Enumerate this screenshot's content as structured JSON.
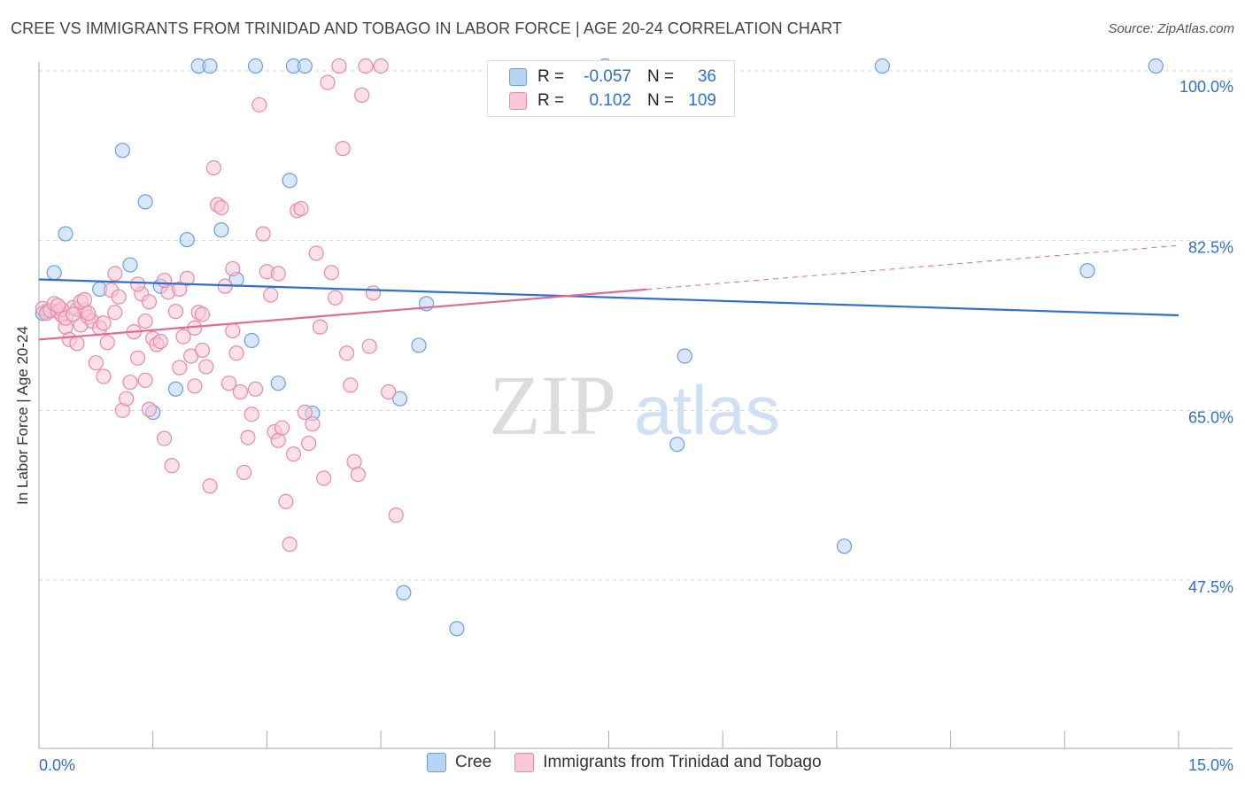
{
  "chart_data": {
    "type": "scatter",
    "title": "CREE VS IMMIGRANTS FROM TRINIDAD AND TOBAGO IN LABOR FORCE | AGE 20-24 CORRELATION CHART",
    "source": "Source: ZipAtlas.com",
    "xlabel": "",
    "ylabel": "In Labor Force | Age 20-24",
    "xlim": [
      0,
      15
    ],
    "ylim": [
      32,
      102
    ],
    "x_tick_labels": [
      "0.0%",
      "15.0%"
    ],
    "y_ticks": [
      100,
      82.5,
      65,
      47.5
    ],
    "y_tick_labels": [
      "100.0%",
      "82.5%",
      "65.0%",
      "47.5%"
    ],
    "watermark": {
      "zip": "ZIP",
      "atlas": "atlas"
    },
    "legend": {
      "r_label": "R =",
      "n_label": "N =",
      "entries": [
        {
          "name": "Cree",
          "r": "-0.057",
          "n": "36",
          "fill": "#b8d4f4",
          "stroke": "#6a9ee0"
        },
        {
          "name": "Immigrants from Trinidad and Tobago",
          "r": "0.102",
          "n": "109",
          "fill": "#f9c7d6",
          "stroke": "#e889a8"
        }
      ]
    },
    "series": [
      {
        "name": "Cree",
        "color": "#6a9ee0",
        "fill": "#b8d4f4",
        "trend": {
          "x": [
            0,
            15
          ],
          "y": [
            78.5,
            74.8
          ],
          "color": "#2f6fd0",
          "dashed_from": null
        },
        "points": [
          [
            0.1,
            75.2
          ],
          [
            0.2,
            79.2
          ],
          [
            0.35,
            83.2
          ],
          [
            0.5,
            75.4
          ],
          [
            0.8,
            77.5
          ],
          [
            1.1,
            91.8
          ],
          [
            1.2,
            80.0
          ],
          [
            1.4,
            86.5
          ],
          [
            1.5,
            64.8
          ],
          [
            1.6,
            77.8
          ],
          [
            1.8,
            67.2
          ],
          [
            1.95,
            82.6
          ],
          [
            2.1,
            100.5
          ],
          [
            2.25,
            100.5
          ],
          [
            2.4,
            83.6
          ],
          [
            2.6,
            78.5
          ],
          [
            2.85,
            100.5
          ],
          [
            2.8,
            72.2
          ],
          [
            3.15,
            67.8
          ],
          [
            3.3,
            88.7
          ],
          [
            3.35,
            100.5
          ],
          [
            3.5,
            100.5
          ],
          [
            3.6,
            64.7
          ],
          [
            4.75,
            66.2
          ],
          [
            4.8,
            46.2
          ],
          [
            5.0,
            71.7
          ],
          [
            5.1,
            76.0
          ],
          [
            5.5,
            42.5
          ],
          [
            7.45,
            100.5
          ],
          [
            8.4,
            61.5
          ],
          [
            8.5,
            70.6
          ],
          [
            10.6,
            51.0
          ],
          [
            11.1,
            100.5
          ],
          [
            13.8,
            79.4
          ],
          [
            14.7,
            100.5
          ],
          [
            0.05,
            75.0
          ]
        ]
      },
      {
        "name": "Immigrants from Trinidad and Tobago",
        "color": "#e889a8",
        "fill": "#f9c7d6",
        "trend": {
          "x": [
            0,
            15
          ],
          "y": [
            72.3,
            82.0
          ],
          "color": "#e06a92",
          "dashed_from": 8.0
        },
        "points": [
          [
            0.05,
            75.5
          ],
          [
            0.1,
            75.0
          ],
          [
            0.15,
            75.3
          ],
          [
            0.2,
            76.0
          ],
          [
            0.25,
            75.2
          ],
          [
            0.3,
            74.8
          ],
          [
            0.35,
            73.6
          ],
          [
            0.4,
            72.3
          ],
          [
            0.45,
            75.6
          ],
          [
            0.5,
            71.9
          ],
          [
            0.55,
            73.8
          ],
          [
            0.6,
            75.3
          ],
          [
            0.65,
            74.6
          ],
          [
            0.7,
            74.2
          ],
          [
            0.75,
            69.9
          ],
          [
            0.8,
            73.5
          ],
          [
            0.85,
            68.5
          ],
          [
            0.9,
            72.0
          ],
          [
            0.95,
            77.4
          ],
          [
            1.0,
            79.1
          ],
          [
            1.05,
            76.7
          ],
          [
            1.1,
            65.0
          ],
          [
            1.15,
            66.2
          ],
          [
            1.2,
            67.9
          ],
          [
            1.25,
            73.1
          ],
          [
            1.3,
            70.4
          ],
          [
            1.35,
            77.0
          ],
          [
            1.4,
            74.2
          ],
          [
            1.45,
            76.2
          ],
          [
            1.5,
            72.4
          ],
          [
            1.55,
            71.8
          ],
          [
            1.6,
            72.1
          ],
          [
            1.65,
            62.1
          ],
          [
            1.7,
            77.2
          ],
          [
            1.75,
            59.3
          ],
          [
            1.8,
            75.2
          ],
          [
            1.85,
            77.5
          ],
          [
            1.9,
            72.6
          ],
          [
            1.95,
            78.6
          ],
          [
            2.0,
            70.6
          ],
          [
            2.05,
            73.5
          ],
          [
            2.1,
            75.1
          ],
          [
            2.15,
            71.2
          ],
          [
            2.2,
            69.5
          ],
          [
            2.25,
            57.2
          ],
          [
            2.3,
            90.0
          ],
          [
            2.35,
            86.2
          ],
          [
            2.4,
            85.9
          ],
          [
            2.45,
            77.8
          ],
          [
            2.5,
            67.8
          ],
          [
            2.55,
            79.6
          ],
          [
            2.6,
            70.9
          ],
          [
            2.65,
            66.9
          ],
          [
            2.7,
            58.6
          ],
          [
            2.75,
            62.2
          ],
          [
            2.8,
            64.6
          ],
          [
            2.85,
            67.2
          ],
          [
            2.9,
            96.5
          ],
          [
            2.95,
            83.2
          ],
          [
            3.0,
            79.3
          ],
          [
            3.05,
            76.9
          ],
          [
            3.1,
            62.8
          ],
          [
            3.15,
            61.9
          ],
          [
            3.2,
            63.2
          ],
          [
            3.25,
            55.6
          ],
          [
            3.3,
            51.2
          ],
          [
            3.35,
            60.5
          ],
          [
            3.4,
            85.6
          ],
          [
            3.45,
            85.8
          ],
          [
            3.5,
            64.8
          ],
          [
            3.55,
            61.6
          ],
          [
            3.6,
            63.6
          ],
          [
            3.65,
            81.2
          ],
          [
            3.7,
            73.6
          ],
          [
            3.75,
            58.0
          ],
          [
            3.8,
            98.8
          ],
          [
            3.85,
            79.2
          ],
          [
            3.9,
            76.6
          ],
          [
            3.95,
            100.5
          ],
          [
            4.0,
            92.0
          ],
          [
            4.05,
            70.9
          ],
          [
            4.1,
            67.6
          ],
          [
            4.15,
            59.7
          ],
          [
            4.2,
            58.4
          ],
          [
            4.25,
            97.5
          ],
          [
            4.3,
            100.5
          ],
          [
            4.35,
            71.6
          ],
          [
            4.4,
            77.1
          ],
          [
            4.5,
            100.5
          ],
          [
            4.6,
            66.9
          ],
          [
            4.7,
            54.2
          ],
          [
            2.15,
            74.9
          ],
          [
            1.65,
            78.4
          ],
          [
            0.3,
            75.4
          ],
          [
            0.55,
            76.2
          ],
          [
            0.65,
            75.0
          ],
          [
            1.3,
            78.0
          ],
          [
            1.0,
            75.1
          ],
          [
            0.35,
            74.5
          ],
          [
            0.45,
            74.9
          ],
          [
            0.25,
            75.8
          ],
          [
            0.6,
            76.4
          ],
          [
            2.55,
            73.2
          ],
          [
            3.15,
            79.1
          ],
          [
            2.05,
            67.5
          ],
          [
            1.4,
            68.1
          ],
          [
            0.85,
            74.0
          ],
          [
            1.85,
            69.4
          ],
          [
            1.45,
            65.1
          ]
        ]
      }
    ]
  }
}
